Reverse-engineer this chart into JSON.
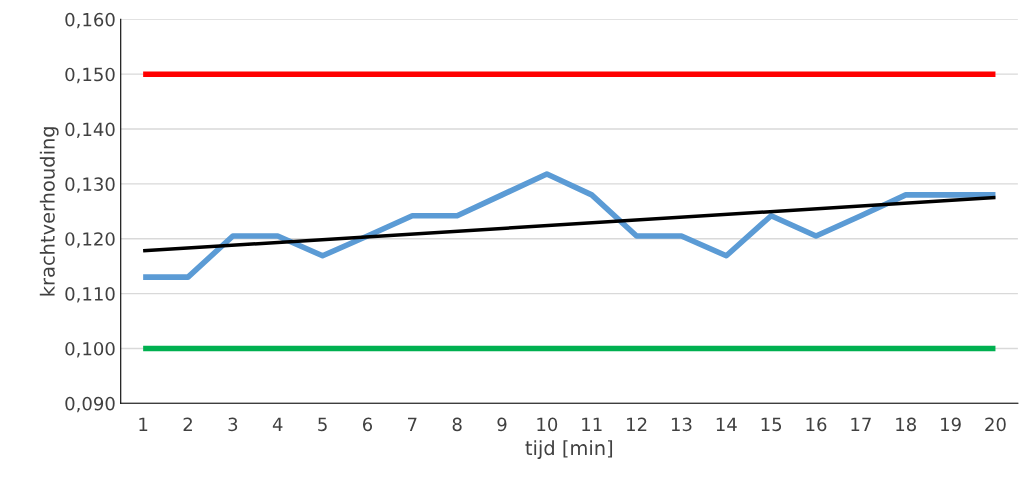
{
  "chart_data": {
    "type": "line",
    "xlabel": "tijd [min]",
    "ylabel": "krachtverhouding",
    "x": [
      1,
      2,
      3,
      4,
      5,
      6,
      7,
      8,
      9,
      10,
      11,
      12,
      13,
      14,
      15,
      16,
      17,
      18,
      19,
      20
    ],
    "series": [
      {
        "color": "#ff0000",
        "values": [
          0.15,
          0.15,
          0.15,
          0.15,
          0.15,
          0.15,
          0.15,
          0.15,
          0.15,
          0.15,
          0.15,
          0.15,
          0.15,
          0.15,
          0.15,
          0.15,
          0.15,
          0.15,
          0.15,
          0.15
        ]
      },
      {
        "color": "#00b050",
        "values": [
          0.1,
          0.1,
          0.1,
          0.1,
          0.1,
          0.1,
          0.1,
          0.1,
          0.1,
          0.1,
          0.1,
          0.1,
          0.1,
          0.1,
          0.1,
          0.1,
          0.1,
          0.1,
          0.1,
          0.1
        ]
      },
      {
        "color": "#5b9bd5",
        "values": [
          0.113,
          0.113,
          0.1205,
          0.1205,
          0.1169,
          0.1205,
          0.1242,
          0.1242,
          0.128,
          0.1318,
          0.128,
          0.1205,
          0.1205,
          0.1169,
          0.1242,
          0.1205,
          0.1242,
          0.128,
          0.128,
          0.128
        ]
      },
      {
        "color": "#000000",
        "x": [
          1,
          20
        ],
        "values": [
          0.1178,
          0.1275
        ]
      }
    ],
    "xlim": [
      0.5,
      20.5
    ],
    "xticks": [
      1,
      2,
      3,
      4,
      5,
      6,
      7,
      8,
      9,
      10,
      11,
      12,
      13,
      14,
      15,
      16,
      17,
      18,
      19,
      20
    ],
    "ylim": [
      0.09,
      0.16
    ],
    "yticks": [
      {
        "value": 0.09,
        "label": "0,090"
      },
      {
        "value": 0.1,
        "label": "0,100"
      },
      {
        "value": 0.11,
        "label": "0,110"
      },
      {
        "value": 0.12,
        "label": "0,120"
      },
      {
        "value": 0.13,
        "label": "0,130"
      },
      {
        "value": 0.14,
        "label": "0,140"
      },
      {
        "value": 0.15,
        "label": "0,150"
      },
      {
        "value": 0.16,
        "label": "0,160"
      }
    ],
    "grid": "y",
    "legend": false,
    "marker": "none",
    "line_style": "solid"
  }
}
